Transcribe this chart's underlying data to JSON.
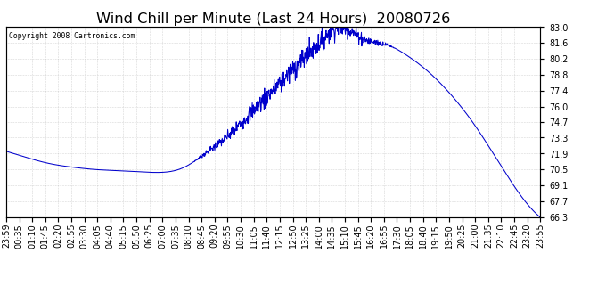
{
  "title": "Wind Chill per Minute (Last 24 Hours)  20080726",
  "copyright": "Copyright 2008 Cartronics.com",
  "line_color": "#0000cc",
  "background_color": "#ffffff",
  "grid_color": "#aaaaaa",
  "ylim": [
    66.3,
    83.0
  ],
  "yticks": [
    66.3,
    67.7,
    69.1,
    70.5,
    71.9,
    73.3,
    74.7,
    76.0,
    77.4,
    78.8,
    80.2,
    81.6,
    83.0
  ],
  "title_fontsize": 11,
  "tick_fontsize": 6.5,
  "xtick_labels": [
    "23:59",
    "00:35",
    "01:10",
    "01:45",
    "02:20",
    "02:55",
    "03:30",
    "04:05",
    "04:40",
    "05:15",
    "05:50",
    "06:25",
    "07:00",
    "07:35",
    "08:10",
    "08:45",
    "09:20",
    "09:55",
    "10:30",
    "11:05",
    "11:40",
    "12:15",
    "12:50",
    "13:25",
    "14:00",
    "14:35",
    "15:10",
    "15:45",
    "16:20",
    "16:55",
    "17:30",
    "18:05",
    "18:40",
    "19:15",
    "19:50",
    "20:25",
    "21:00",
    "21:35",
    "22:10",
    "22:45",
    "23:20",
    "23:55"
  ],
  "profile_times": [
    0,
    60,
    120,
    180,
    240,
    300,
    360,
    420,
    480,
    540,
    600,
    660,
    720,
    780,
    840,
    870,
    900,
    960,
    1020,
    1080,
    1140,
    1200,
    1260,
    1320,
    1380,
    1439
  ],
  "profile_values": [
    72.1,
    71.5,
    71.0,
    70.7,
    70.5,
    70.4,
    70.3,
    70.25,
    70.7,
    72.0,
    73.5,
    75.5,
    77.5,
    79.5,
    81.5,
    82.5,
    83.0,
    82.0,
    81.5,
    80.5,
    79.0,
    77.0,
    74.5,
    71.5,
    68.5,
    66.3
  ]
}
